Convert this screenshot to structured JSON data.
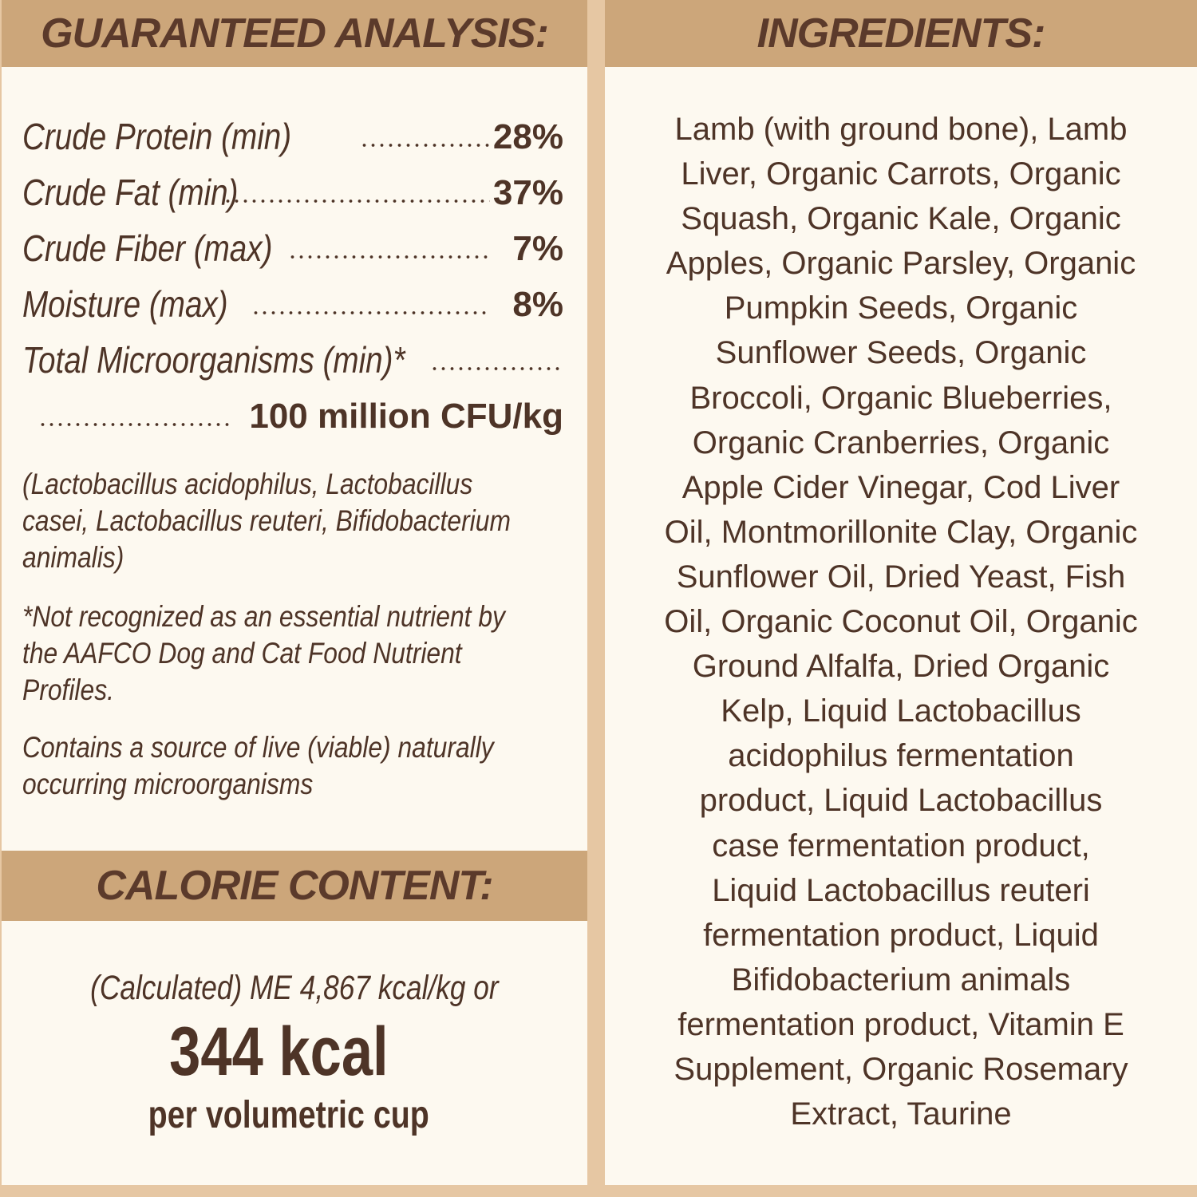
{
  "guaranteed_analysis": {
    "title": "GUARANTEED ANALYSIS:",
    "rows": [
      {
        "label": "Crude Protein (min)",
        "value": "28%"
      },
      {
        "label": "Crude Fat (min)",
        "value": "37%"
      },
      {
        "label": "Crude Fiber (max)",
        "value": "7%"
      },
      {
        "label": "Moisture (max)",
        "value": "8%"
      },
      {
        "label": "Total Microorganisms (min)*",
        "value": ""
      },
      {
        "label": "",
        "value": "100 million CFU/kg"
      }
    ],
    "species_note_lines": [
      "(Lactobacillus acidophilus, Lactobacillus",
      "casei, Lactobacillus reuteri, Bifidobacterium",
      "animalis)"
    ],
    "aafco_note_lines": [
      "*Not recognized as an essential nutrient by",
      "the AAFCO Dog and Cat Food Nutrient",
      "Profiles."
    ],
    "live_note_lines": [
      "Contains a source of live (viable) naturally",
      "occurring microorganisms"
    ]
  },
  "calorie_content": {
    "title": "CALORIE CONTENT:",
    "calculated": "(Calculated) ME 4,867 kcal/kg or",
    "per_cup_value": "344 kcal",
    "per_cup_unit": "per volumetric cup"
  },
  "ingredients": {
    "title": "INGREDIENTS:",
    "lines": [
      "Lamb (with ground bone), Lamb",
      "Liver, Organic Carrots, Organic",
      "Squash, Organic Kale, Organic",
      "Apples, Organic Parsley, Organic",
      "Pumpkin Seeds, Organic",
      "Sunflower Seeds, Organic",
      "Broccoli, Organic Blueberries,",
      "Organic Cranberries, Organic",
      "Apple Cider Vinegar, Cod Liver",
      "Oil, Montmorillonite Clay, Organic",
      "Sunflower Oil, Dried Yeast, Fish",
      "Oil, Organic Coconut Oil, Organic",
      "Ground Alfalfa, Dried Organic",
      "Kelp, Liquid Lactobacillus",
      "acidophilus fermentation",
      "product, Liquid Lactobacillus",
      "case fermentation product,",
      "Liquid Lactobacillus reuteri",
      "fermentation product, Liquid",
      "Bifidobacterium animals",
      "fermentation product, Vitamin E",
      "Supplement, Organic Rosemary",
      "Extract, Taurine"
    ]
  },
  "colors": {
    "background": "#e6c7a3",
    "panel": "#fdf9f0",
    "header_bar": "#cca67a",
    "text": "#4e3427",
    "header_text": "#5b3a2b"
  }
}
